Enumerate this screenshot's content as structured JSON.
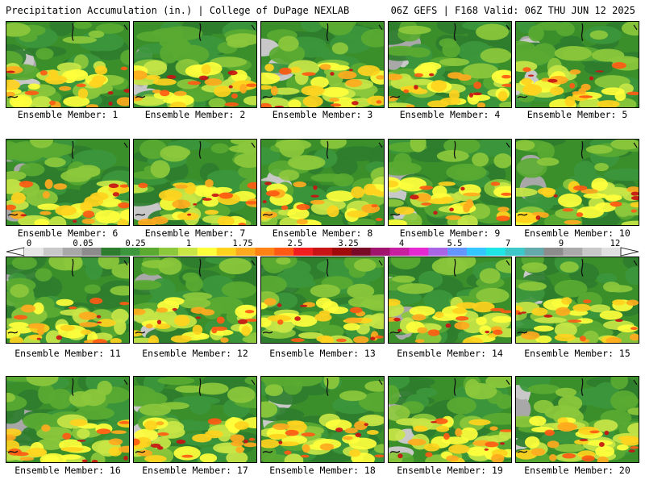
{
  "header": {
    "left_title": "Precipitation Accumulation (in.) | College of DuPage NEXLAB",
    "right_title": "06Z GEFS | F168 Valid: 06Z THU JUN 12 2025"
  },
  "panels": [
    {
      "label": "Ensemble Member: 1"
    },
    {
      "label": "Ensemble Member: 2"
    },
    {
      "label": "Ensemble Member: 3"
    },
    {
      "label": "Ensemble Member: 4"
    },
    {
      "label": "Ensemble Member: 5"
    },
    {
      "label": "Ensemble Member: 6"
    },
    {
      "label": "Ensemble Member: 7"
    },
    {
      "label": "Ensemble Member: 8"
    },
    {
      "label": "Ensemble Member: 9"
    },
    {
      "label": "Ensemble Member: 10"
    },
    {
      "label": "Ensemble Member: 11"
    },
    {
      "label": "Ensemble Member: 12"
    },
    {
      "label": "Ensemble Member: 13"
    },
    {
      "label": "Ensemble Member: 14"
    },
    {
      "label": "Ensemble Member: 15"
    },
    {
      "label": "Ensemble Member: 16"
    },
    {
      "label": "Ensemble Member: 17"
    },
    {
      "label": "Ensemble Member: 18"
    },
    {
      "label": "Ensemble Member: 19"
    },
    {
      "label": "Ensemble Member: 20"
    }
  ],
  "legend": {
    "labels": [
      "0",
      "0.05",
      "0.25",
      "1",
      "1.75",
      "2.5",
      "3.25",
      "4",
      "5.5",
      "7",
      "9",
      "12"
    ],
    "colors": [
      "#e6e6e6",
      "#c8c8c8",
      "#a8a8a8",
      "#8c8c8c",
      "#2e7d2e",
      "#3c963c",
      "#5aaa32",
      "#8cc83c",
      "#c8e646",
      "#ffff3c",
      "#ffd21e",
      "#ffaa1e",
      "#ff8214",
      "#ff5a14",
      "#f01e1e",
      "#c81414",
      "#a00a0a",
      "#780a28",
      "#a0146e",
      "#c81ea0",
      "#e628d2",
      "#aa64e6",
      "#6496ff",
      "#32c8ff",
      "#1ee6e6",
      "#3cc8c8",
      "#64aaaa",
      "#8c8c8c",
      "#aaaaaa",
      "#c8c8c8",
      "#e0e0e0"
    ]
  }
}
